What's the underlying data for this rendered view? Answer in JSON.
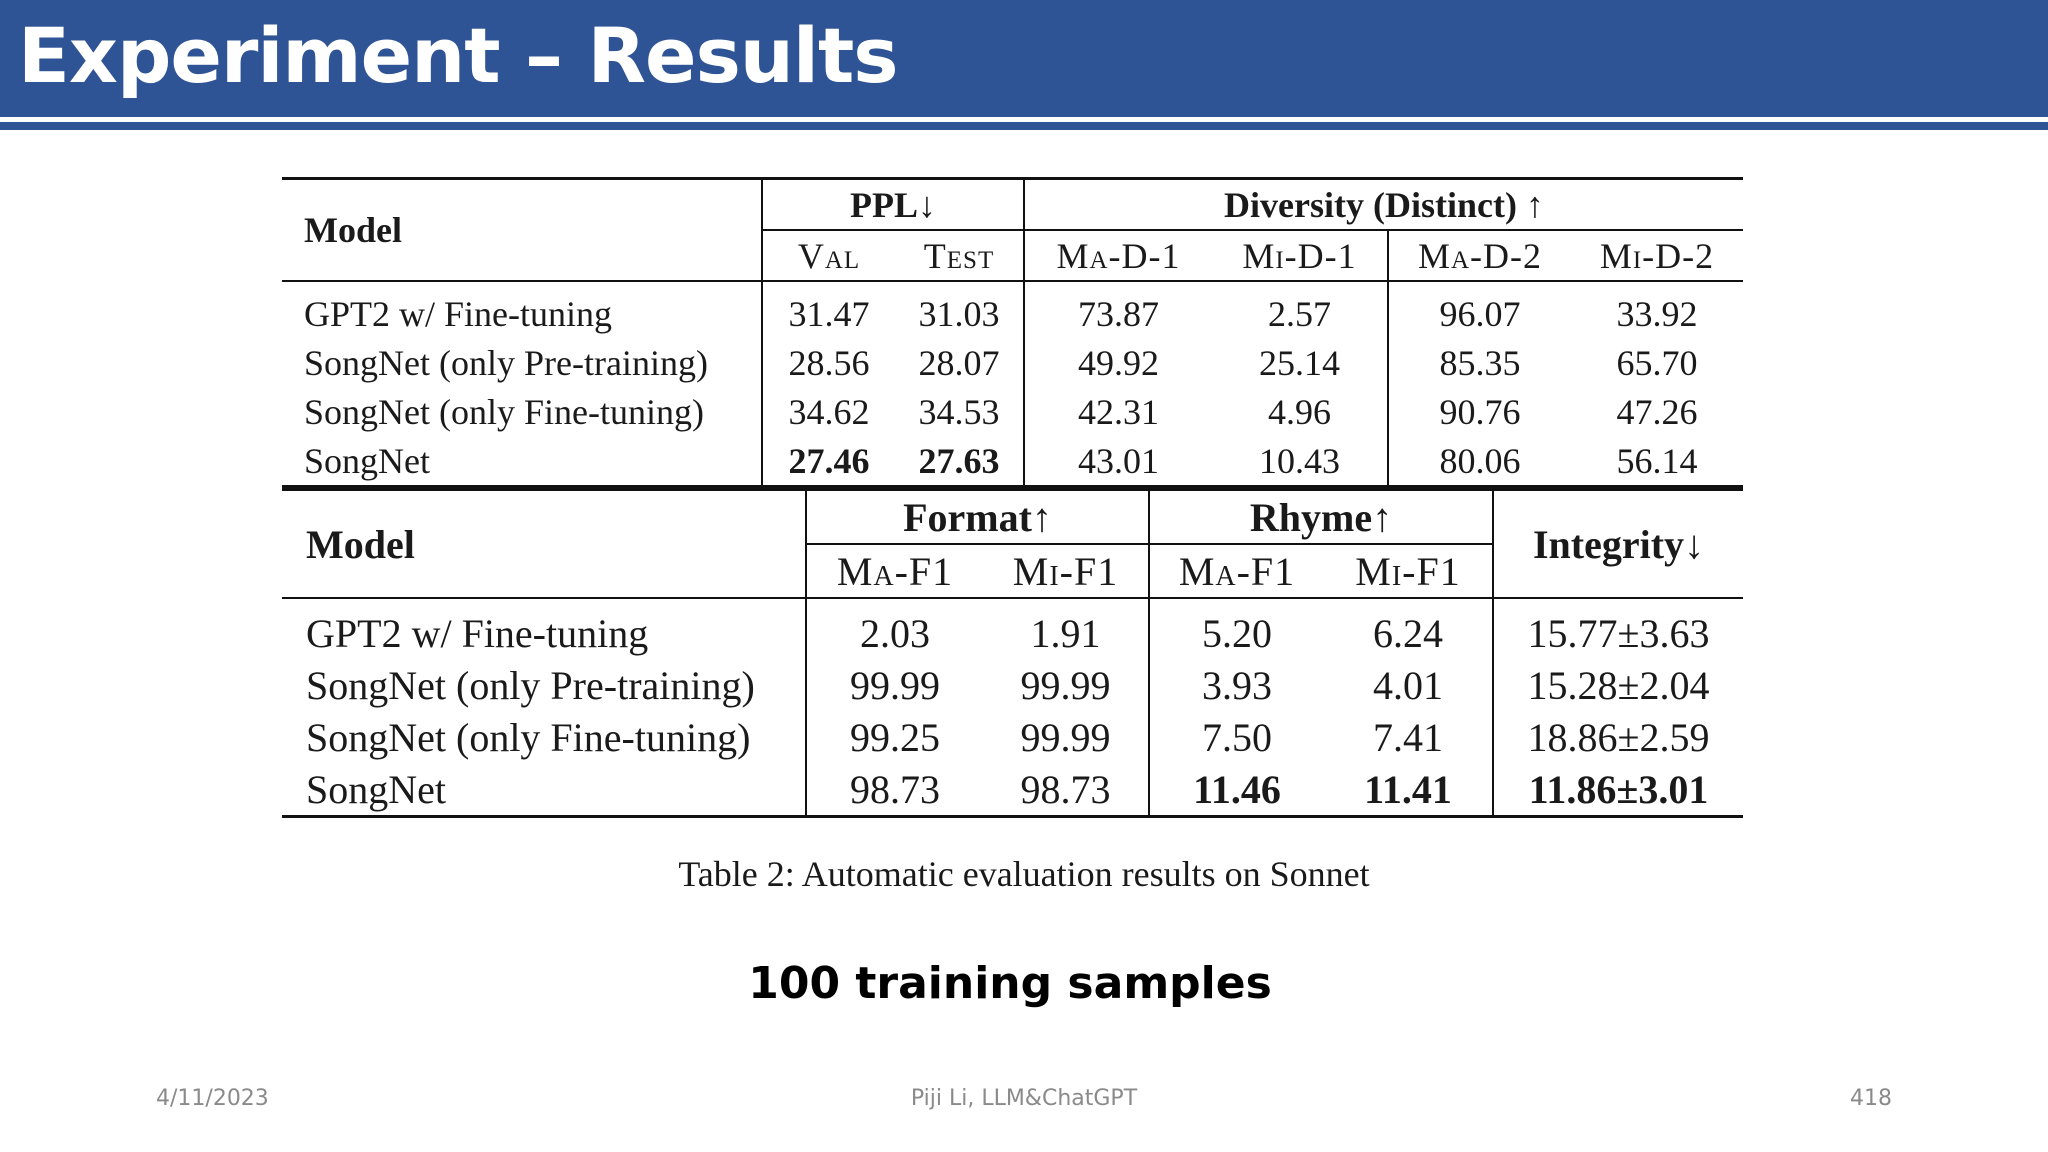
{
  "slide": {
    "title": "Experiment – Results",
    "caption": "Table 2: Automatic evaluation results on Sonnet",
    "samples_note": "100 training samples",
    "footer": {
      "date": "4/11/2023",
      "author": "Piji Li, LLM&ChatGPT",
      "page": "418"
    }
  },
  "table1": {
    "model_header": "Model",
    "ppl_header": "PPL↓",
    "diversity_header": "Diversity (Distinct) ↑",
    "subheaders": [
      "Val",
      "Test",
      "Ma-D-1",
      "Mi-D-1",
      "Ma-D-2",
      "Mi-D-2"
    ],
    "rows": [
      {
        "model": "GPT2 w/ Fine-tuning",
        "values": [
          "31.47",
          "31.03",
          "73.87",
          "2.57",
          "96.07",
          "33.92"
        ]
      },
      {
        "model": "SongNet (only Pre-training)",
        "values": [
          "28.56",
          "28.07",
          "49.92",
          "25.14",
          "85.35",
          "65.70"
        ]
      },
      {
        "model": "SongNet (only Fine-tuning)",
        "values": [
          "34.62",
          "34.53",
          "42.31",
          "4.96",
          "90.76",
          "47.26"
        ]
      },
      {
        "model": "SongNet",
        "values": [
          "27.46",
          "27.63",
          "43.01",
          "10.43",
          "80.06",
          "56.14"
        ]
      }
    ]
  },
  "table2": {
    "model_header": "Model",
    "format_header": "Format↑",
    "rhyme_header": "Rhyme↑",
    "integrity_header": "Integrity↓",
    "subheaders": [
      "Ma-F1",
      "Mi-F1",
      "Ma-F1",
      "Mi-F1"
    ],
    "rows": [
      {
        "model": "GPT2 w/ Fine-tuning",
        "values": [
          "2.03",
          "1.91",
          "5.20",
          "6.24",
          "15.77±3.63"
        ]
      },
      {
        "model": "SongNet (only Pre-training)",
        "values": [
          "99.99",
          "99.99",
          "3.93",
          "4.01",
          "15.28±2.04"
        ]
      },
      {
        "model": "SongNet (only Fine-tuning)",
        "values": [
          "99.25",
          "99.99",
          "7.50",
          "7.41",
          "18.86±2.59"
        ]
      },
      {
        "model": "SongNet",
        "values": [
          "98.73",
          "98.73",
          "11.46",
          "11.41",
          "11.86±3.01"
        ]
      }
    ]
  }
}
